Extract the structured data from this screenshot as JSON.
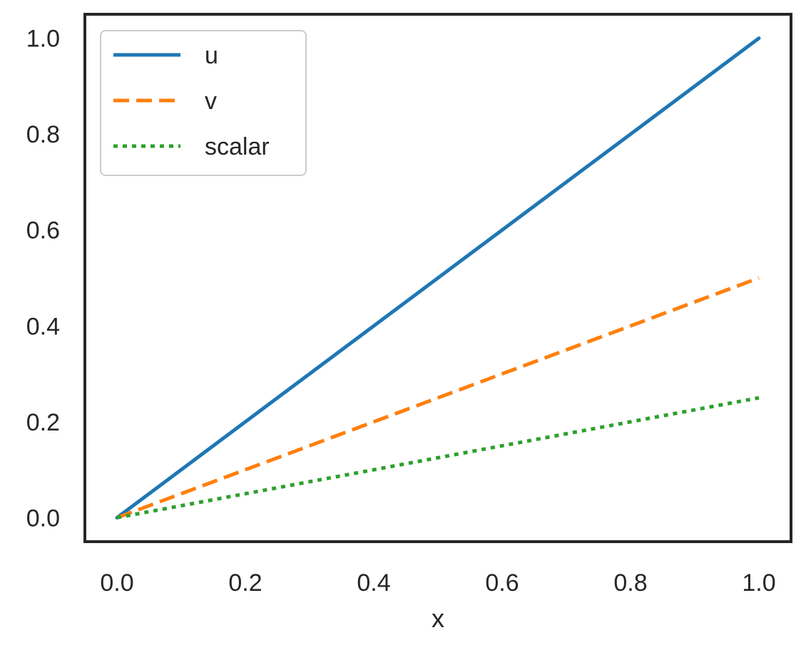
{
  "chart_data": {
    "type": "line",
    "title": "",
    "xlabel": "x",
    "ylabel": "",
    "xlim": [
      -0.05,
      1.05
    ],
    "ylim": [
      -0.05,
      1.05
    ],
    "x_ticks": [
      0.0,
      0.2,
      0.4,
      0.6,
      0.8,
      1.0
    ],
    "x_tick_labels": [
      "0.0",
      "0.2",
      "0.4",
      "0.6",
      "0.8",
      "1.0"
    ],
    "y_ticks": [
      0.0,
      0.2,
      0.4,
      0.6,
      0.8,
      1.0
    ],
    "y_tick_labels": [
      "0.0",
      "0.2",
      "0.4",
      "0.6",
      "0.8",
      "1.0"
    ],
    "grid": false,
    "legend_position": "top-left",
    "series": [
      {
        "name": "u",
        "color": "#1f77b4",
        "style": "solid",
        "x": [
          0.0,
          1.0
        ],
        "y": [
          0.0,
          1.0
        ]
      },
      {
        "name": "v",
        "color": "#ff7f0e",
        "style": "dashed",
        "x": [
          0.0,
          1.0
        ],
        "y": [
          0.0,
          0.5
        ]
      },
      {
        "name": "scalar",
        "color": "#2ca02c",
        "style": "dotted",
        "x": [
          0.0,
          1.0
        ],
        "y": [
          0.0,
          0.25
        ]
      }
    ]
  }
}
